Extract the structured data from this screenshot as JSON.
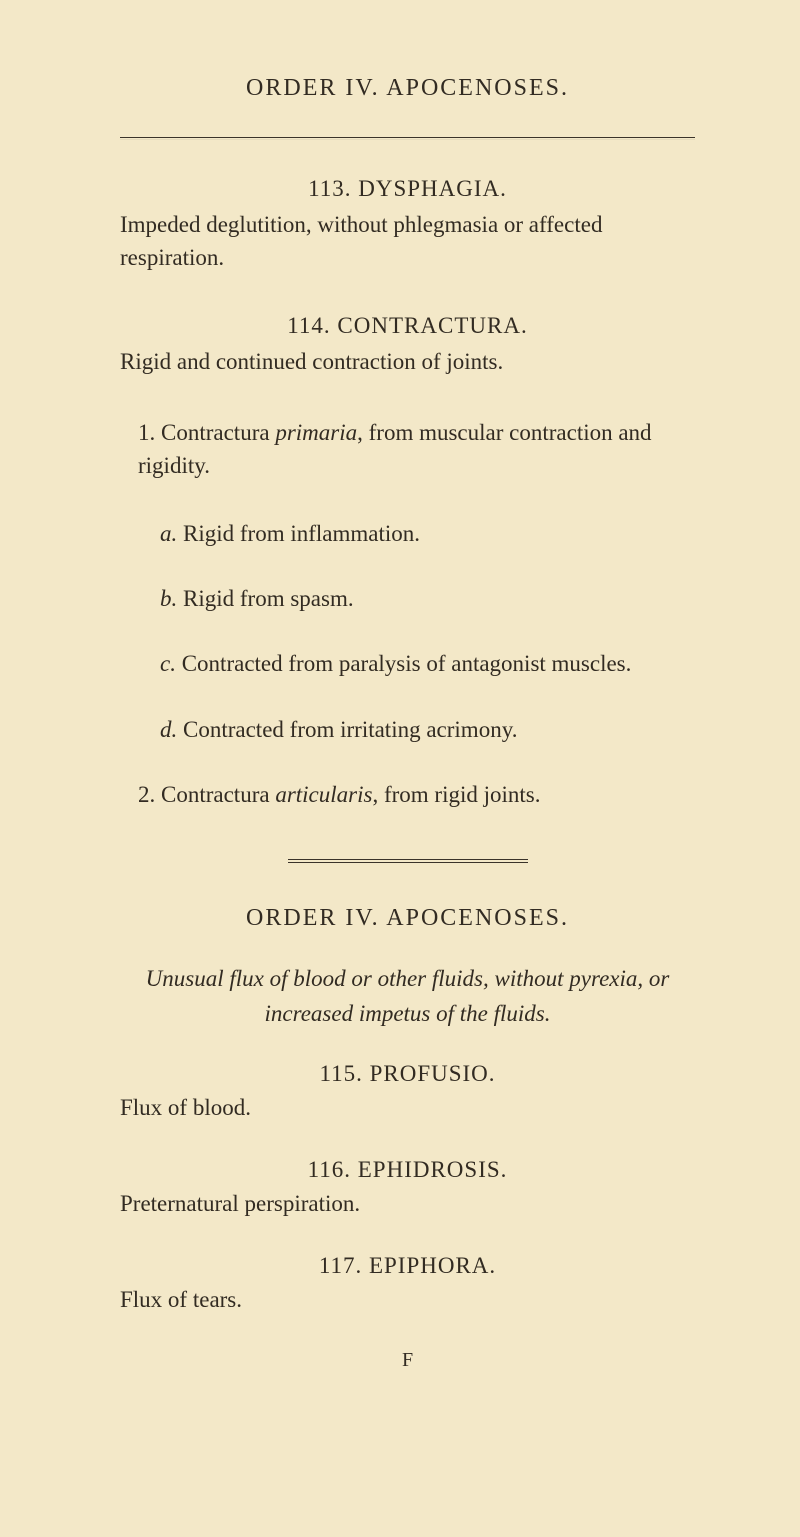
{
  "page_header": "ORDER IV.  APOCENOSES.",
  "entries": {
    "e113": {
      "title": "113. DYSPHAGIA.",
      "description": "Impeded deglutition, without phlegmasia or affected respiration."
    },
    "e114": {
      "title": "114. CONTRACTURA.",
      "description": "Rigid and continued contraction of joints.",
      "sub1": {
        "number": "1.",
        "text_before": " Contractura ",
        "italic": "primaria",
        "text_after": ", from muscular contraction and rigidity.",
        "a_label": "a.",
        "a_text": " Rigid from inflammation.",
        "b_label": "b.",
        "b_text": " Rigid from spasm.",
        "c_label": "c.",
        "c_text": " Contracted from paralysis of antagonist muscles.",
        "d_label": "d.",
        "d_text": " Contracted from irritating acrimony."
      },
      "sub2": {
        "number": "2.",
        "text_before": " Contractura ",
        "italic": "articularis",
        "text_after": ", from rigid joints."
      }
    }
  },
  "section": {
    "title": "ORDER IV.  APOCENOSES.",
    "italic_desc": "Unusual flux of blood or other fluids, without pyrexia, or increased impetus of the fluids."
  },
  "entries2": {
    "e115": {
      "title": "115. PROFUSIO.",
      "label": "Flux of blood."
    },
    "e116": {
      "title": "116. EPHIDROSIS.",
      "label": "Preternatural perspiration."
    },
    "e117": {
      "title": "117. EPIPHORA.",
      "label": "Flux of tears."
    }
  },
  "sig": "F",
  "colors": {
    "background": "#f3e8c8",
    "text": "#322b22",
    "rule": "#3a332a"
  },
  "typography": {
    "font_family": "Times New Roman",
    "header_size": 24,
    "body_size": 23
  }
}
